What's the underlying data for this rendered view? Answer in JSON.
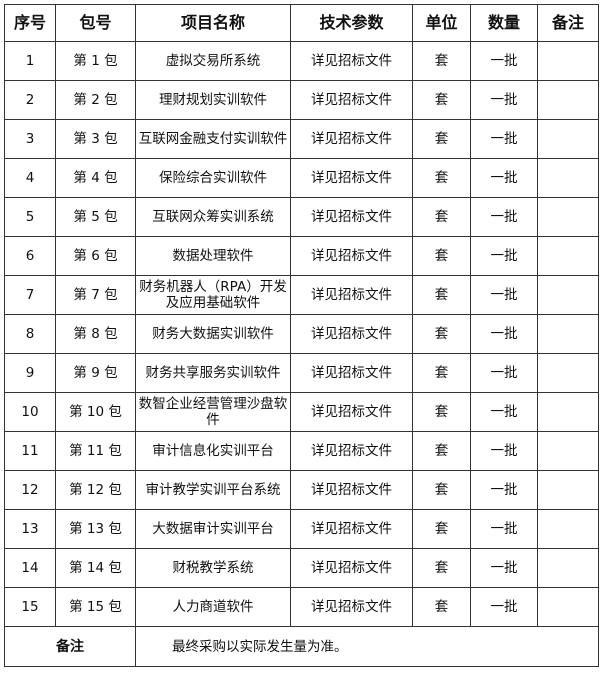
{
  "headers": [
    "序号",
    "包号",
    "项目名称",
    "技术参数",
    "单位",
    "数量",
    "备注"
  ],
  "rows": [
    {
      "no": "1",
      "pkg": "第 1 包",
      "name": "虚拟交易所系统",
      "spec": "详见招标文件",
      "unit": "套",
      "qty": "一批",
      "remark": ""
    },
    {
      "no": "2",
      "pkg": "第 2 包",
      "name": "理财规划实训软件",
      "spec": "详见招标文件",
      "unit": "套",
      "qty": "一批",
      "remark": ""
    },
    {
      "no": "3",
      "pkg": "第 3 包",
      "name": "互联网金融支付实训软件",
      "spec": "详见招标文件",
      "unit": "套",
      "qty": "一批",
      "remark": ""
    },
    {
      "no": "4",
      "pkg": "第 4 包",
      "name": "保险综合实训软件",
      "spec": "详见招标文件",
      "unit": "套",
      "qty": "一批",
      "remark": ""
    },
    {
      "no": "5",
      "pkg": "第 5 包",
      "name": "互联网众筹实训系统",
      "spec": "详见招标文件",
      "unit": "套",
      "qty": "一批",
      "remark": ""
    },
    {
      "no": "6",
      "pkg": "第 6 包",
      "name": "数据处理软件",
      "spec": "详见招标文件",
      "unit": "套",
      "qty": "一批",
      "remark": ""
    },
    {
      "no": "7",
      "pkg": "第 7 包",
      "name": "财务机器人（RPA）开发及应用基础软件",
      "spec": "详见招标文件",
      "unit": "套",
      "qty": "一批",
      "remark": ""
    },
    {
      "no": "8",
      "pkg": "第 8 包",
      "name": "财务大数据实训软件",
      "spec": "详见招标文件",
      "unit": "套",
      "qty": "一批",
      "remark": ""
    },
    {
      "no": "9",
      "pkg": "第 9 包",
      "name": "财务共享服务实训软件",
      "spec": "详见招标文件",
      "unit": "套",
      "qty": "一批",
      "remark": ""
    },
    {
      "no": "10",
      "pkg": "第 10 包",
      "name": "数智企业经营管理沙盘软件",
      "spec": "详见招标文件",
      "unit": "套",
      "qty": "一批",
      "remark": ""
    },
    {
      "no": "11",
      "pkg": "第 11 包",
      "name": "审计信息化实训平台",
      "spec": "详见招标文件",
      "unit": "套",
      "qty": "一批",
      "remark": ""
    },
    {
      "no": "12",
      "pkg": "第 12 包",
      "name": "审计教学实训平台系统",
      "spec": "详见招标文件",
      "unit": "套",
      "qty": "一批",
      "remark": ""
    },
    {
      "no": "13",
      "pkg": "第 13 包",
      "name": "大数据审计实训平台",
      "spec": "详见招标文件",
      "unit": "套",
      "qty": "一批",
      "remark": ""
    },
    {
      "no": "14",
      "pkg": "第 14 包",
      "name": "财税教学系统",
      "spec": "详见招标文件",
      "unit": "套",
      "qty": "一批",
      "remark": ""
    },
    {
      "no": "15",
      "pkg": "第 15 包",
      "name": "人力商道软件",
      "spec": "详见招标文件",
      "unit": "套",
      "qty": "一批",
      "remark": ""
    }
  ],
  "footer": {
    "label": "备注",
    "text": "最终采购以实际发生量为准。"
  }
}
